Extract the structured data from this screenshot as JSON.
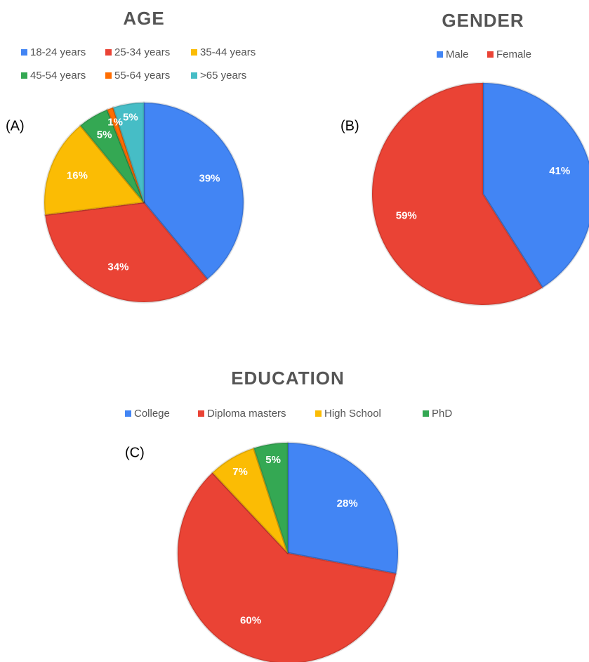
{
  "chart_data": [
    {
      "type": "pie",
      "panel": "(A)",
      "title": "AGE",
      "categories": [
        "18-24 years",
        "25-34 years",
        "35-44 years",
        "45-54 years",
        "55-64 years",
        ">65 years"
      ],
      "values": [
        39,
        34,
        16,
        5,
        1,
        5
      ],
      "value_labels": [
        "39%",
        "34%",
        "16%",
        "5%",
        "1%",
        "5%"
      ],
      "colors": [
        "#4285f4",
        "#ea4335",
        "#fbbc04",
        "#34a853",
        "#ff6d01",
        "#46bdc6"
      ],
      "legend": "top"
    },
    {
      "type": "pie",
      "panel": "(B)",
      "title": "GENDER",
      "categories": [
        "Male",
        "Female"
      ],
      "values": [
        41,
        59
      ],
      "value_labels": [
        "41%",
        "59%"
      ],
      "colors": [
        "#4285f4",
        "#ea4335"
      ],
      "legend": "top"
    },
    {
      "type": "pie",
      "panel": "(C)",
      "title": "EDUCATION",
      "categories": [
        "College",
        "Diploma masters",
        "High School",
        "PhD"
      ],
      "values": [
        28,
        60,
        7,
        5
      ],
      "value_labels": [
        "28%",
        "60%",
        "7%",
        "5%"
      ],
      "colors": [
        "#4285f4",
        "#ea4335",
        "#fbbc04",
        "#34a853"
      ],
      "legend": "top"
    }
  ]
}
